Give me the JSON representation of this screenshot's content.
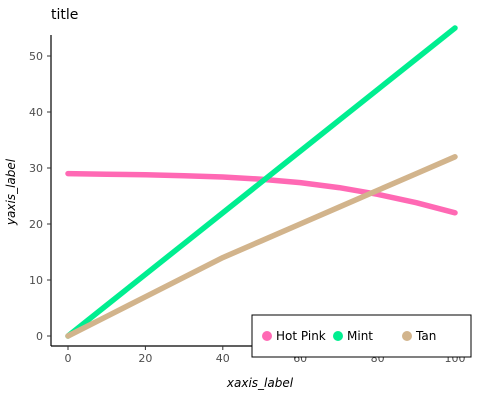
{
  "chart_data": {
    "type": "line",
    "title": "title",
    "xlabel": "xaxis_label",
    "ylabel": "yaxis_label",
    "xlim": [
      0,
      100
    ],
    "ylim": [
      0,
      54
    ],
    "x_ticks": [
      0,
      20,
      40,
      60,
      80,
      100
    ],
    "y_ticks": [
      0,
      10,
      20,
      30,
      40,
      50
    ],
    "grid": false,
    "legend_position": "bottom-right",
    "series": [
      {
        "name": "Hot Pink",
        "color": "#ff69b4",
        "x": [
          0,
          10,
          20,
          30,
          40,
          50,
          60,
          70,
          80,
          90,
          100
        ],
        "y": [
          29,
          28.9,
          28.8,
          28.6,
          28.4,
          28,
          27.4,
          26.5,
          25.3,
          23.8,
          22
        ]
      },
      {
        "name": "Mint",
        "color": "#00ee90",
        "x": [
          0,
          10,
          20,
          30,
          40,
          50,
          60,
          70,
          80,
          90,
          100
        ],
        "y": [
          0,
          5.5,
          11,
          16.5,
          22,
          27.5,
          33,
          38.5,
          44,
          49.5,
          55
        ]
      },
      {
        "name": "Tan",
        "color": "#d2b48c",
        "x": [
          0,
          10,
          20,
          30,
          40,
          50,
          60,
          70,
          80,
          90,
          100
        ],
        "y": [
          0,
          3.5,
          7,
          10.5,
          14,
          17,
          20,
          23,
          26,
          29,
          32
        ]
      }
    ]
  }
}
